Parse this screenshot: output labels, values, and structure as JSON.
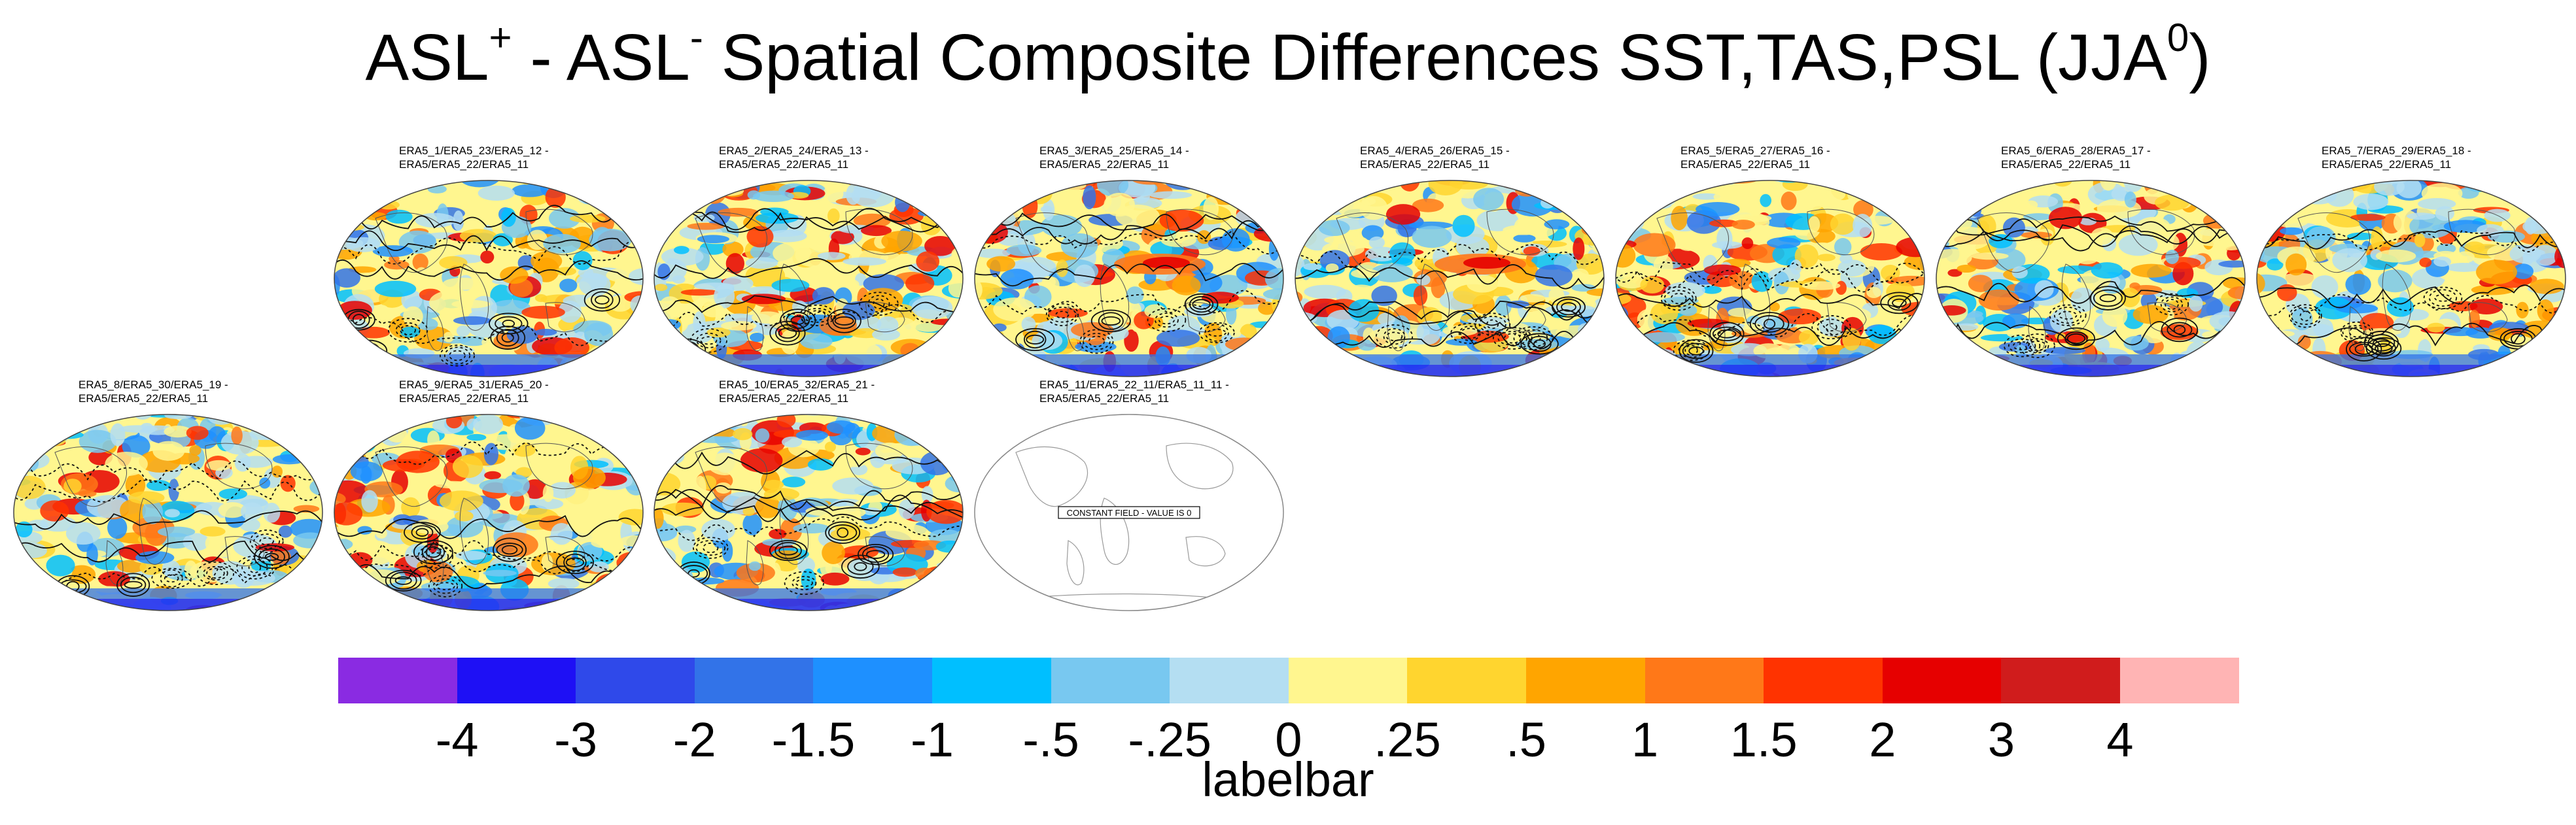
{
  "title": {
    "parts": [
      "ASL",
      "+",
      " - ASL",
      "-",
      " Spatial Composite Differences SST,TAS,PSL (JJA",
      "0",
      ")"
    ]
  },
  "panels": [
    {
      "line1": "ERA5_1/ERA5_23/ERA5_12 -",
      "line2": "ERA5/ERA5_22/ERA5_11",
      "seed": 11,
      "hot": 0
    },
    {
      "line1": "ERA5_2/ERA5_24/ERA5_13 -",
      "line2": "ERA5/ERA5_22/ERA5_11",
      "seed": 23,
      "hot": 0
    },
    {
      "line1": "ERA5_3/ERA5_25/ERA5_14 -",
      "line2": "ERA5/ERA5_22/ERA5_11",
      "seed": 37,
      "hot": 1
    },
    {
      "line1": "ERA5_4/ERA5_26/ERA5_15 -",
      "line2": "ERA5/ERA5_22/ERA5_11",
      "seed": 41,
      "hot": 1
    },
    {
      "line1": "ERA5_5/ERA5_27/ERA5_16 -",
      "line2": "ERA5/ERA5_22/ERA5_11",
      "seed": 53,
      "hot": 0
    },
    {
      "line1": "ERA5_6/ERA5_28/ERA5_17 -",
      "line2": "ERA5/ERA5_22/ERA5_11",
      "seed": 67,
      "hot": 0
    },
    {
      "line1": "ERA5_7/ERA5_29/ERA5_18 -",
      "line2": "ERA5/ERA5_22/ERA5_11",
      "seed": 71,
      "hot": 0
    },
    {
      "line1": "ERA5_8/ERA5_30/ERA5_19 -",
      "line2": "ERA5/ERA5_22/ERA5_11",
      "seed": 83,
      "hot": 0
    },
    {
      "line1": "ERA5_9/ERA5_31/ERA5_20 -",
      "line2": "ERA5/ERA5_22/ERA5_11",
      "seed": 97,
      "hot": 0
    },
    {
      "line1": "ERA5_10/ERA5_32/ERA5_21 -",
      "line2": "ERA5/ERA5_22/ERA5_11",
      "seed": 101,
      "hot": 0
    },
    {
      "line1": "ERA5_11/ERA5_22_11/ERA5_11_11 -",
      "line2": "ERA5/ERA5_22/ERA5_11",
      "constant": true,
      "constant_text": "CONSTANT FIELD - VALUE IS 0"
    }
  ],
  "labelbar": {
    "title": "labelbar",
    "colors": [
      "#8a2be2",
      "#1e10f5",
      "#2f49ea",
      "#3273e8",
      "#1e90ff",
      "#00bfff",
      "#78c8f0",
      "#b4def2",
      "#fff68f",
      "#ffd52f",
      "#ffa500",
      "#ff7818",
      "#ff3300",
      "#e60000",
      "#d01c1c",
      "#ffb4b4"
    ],
    "ticks": [
      "-4",
      "-3",
      "-2",
      "-1.5",
      "-1",
      "-.5",
      "-.25",
      "0",
      ".25",
      ".5",
      "1",
      "1.5",
      "2",
      "3",
      "4"
    ]
  }
}
